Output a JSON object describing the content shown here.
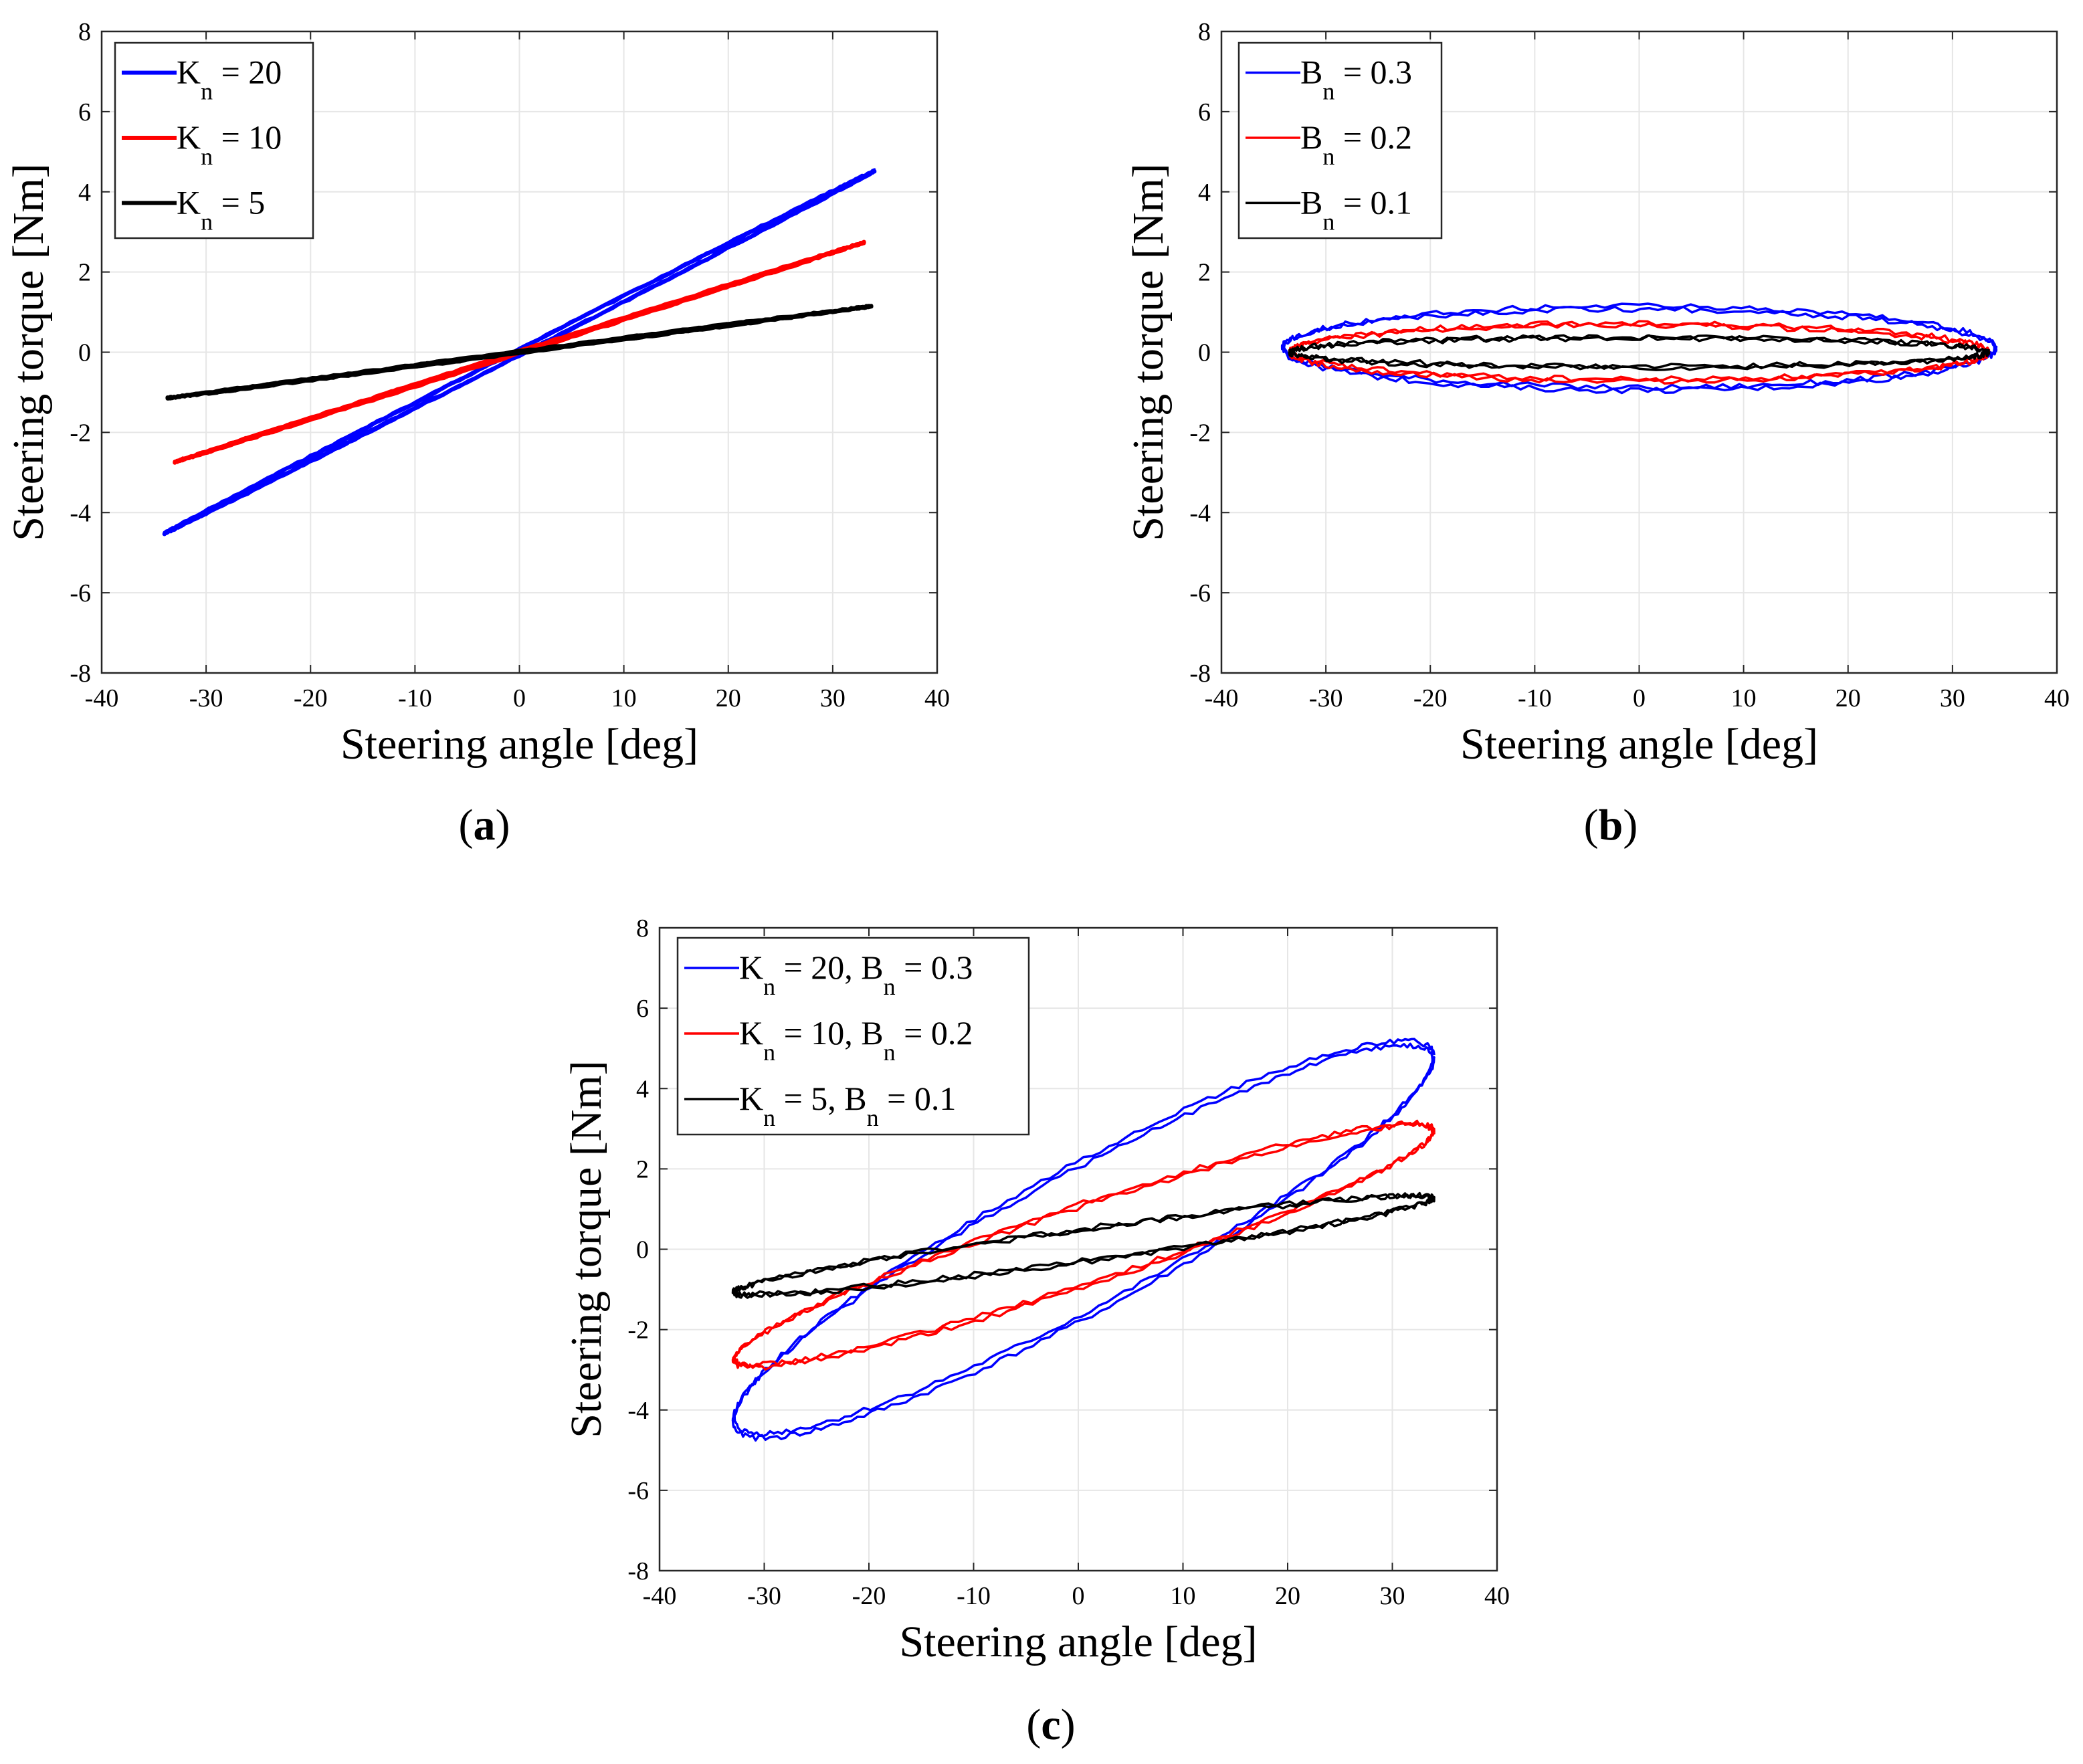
{
  "figure": {
    "panels": [
      {
        "id": "a",
        "label": "(a)",
        "label_parts": [
          "(",
          "a",
          ")"
        ],
        "xlabel": "Steering angle [deg]",
        "ylabel": "Steering torque [Nm]",
        "xlim": [
          -40,
          40
        ],
        "ylim": [
          -8,
          8
        ],
        "xticks": [
          -40,
          -30,
          -20,
          -10,
          0,
          10,
          20,
          30,
          40
        ],
        "yticks": [
          -8,
          -6,
          -4,
          -2,
          0,
          2,
          4,
          6,
          8
        ],
        "legend": [
          {
            "text": "K",
            "sub": "n",
            "rest": " = 20",
            "color": "#0000ff"
          },
          {
            "text": "K",
            "sub": "n",
            "rest": " = 10",
            "color": "#ff0000"
          },
          {
            "text": "K",
            "sub": "n",
            "rest": " = 5",
            "color": "#000000"
          }
        ]
      },
      {
        "id": "b",
        "label": "(b)",
        "label_parts": [
          "(",
          "b",
          ")"
        ],
        "xlabel": "Steering angle [deg]",
        "ylabel": "Steering torque [Nm]",
        "xlim": [
          -40,
          40
        ],
        "ylim": [
          -8,
          8
        ],
        "xticks": [
          -40,
          -30,
          -20,
          -10,
          0,
          10,
          20,
          30,
          40
        ],
        "yticks": [
          -8,
          -6,
          -4,
          -2,
          0,
          2,
          4,
          6,
          8
        ],
        "legend": [
          {
            "text": "B",
            "sub": "n",
            "rest": " = 0.3",
            "color": "#0000ff"
          },
          {
            "text": "B",
            "sub": "n",
            "rest": " = 0.2",
            "color": "#ff0000"
          },
          {
            "text": "B",
            "sub": "n",
            "rest": " = 0.1",
            "color": "#000000"
          }
        ]
      },
      {
        "id": "c",
        "label": "(c)",
        "label_parts": [
          "(",
          "c",
          ")"
        ],
        "xlabel": "Steering angle [deg]",
        "ylabel": "Steering torque [Nm]",
        "xlim": [
          -40,
          40
        ],
        "ylim": [
          -8,
          8
        ],
        "xticks": [
          -40,
          -30,
          -20,
          -10,
          0,
          10,
          20,
          30,
          40
        ],
        "yticks": [
          -8,
          -6,
          -4,
          -2,
          0,
          2,
          4,
          6,
          8
        ],
        "legend": [
          {
            "text": "K",
            "sub": "n",
            "rest": " = 20, B",
            "sub2": "n",
            "rest2": " = 0.3",
            "color": "#0000ff"
          },
          {
            "text": "K",
            "sub": "n",
            "rest": " = 10, B",
            "sub2": "n",
            "rest2": " = 0.2",
            "color": "#ff0000"
          },
          {
            "text": "K",
            "sub": "n",
            "rest": " = 5,   B",
            "sub2": "n",
            "rest2": " = 0.1",
            "color": "#000000"
          }
        ]
      }
    ]
  },
  "chart_data": [
    {
      "type": "line",
      "panel": "a",
      "title": "",
      "xlabel": "Steering angle [deg]",
      "ylabel": "Steering torque [Nm]",
      "xlim": [
        -40,
        40
      ],
      "ylim": [
        -8,
        8
      ],
      "grid": true,
      "legend_position": "top-left",
      "series": [
        {
          "name": "K_n = 20",
          "color": "#0000ff",
          "style": "loop",
          "x_range": [
            -33,
            34
          ],
          "center": [
            0,
            0
          ],
          "amplitude": 34,
          "slope": 0.133,
          "offset": 0.0,
          "half_width": 0.08
        },
        {
          "name": "K_n = 10",
          "color": "#ff0000",
          "style": "loop",
          "x_range": [
            -33,
            33
          ],
          "center": [
            0,
            0
          ],
          "amplitude": 33,
          "slope": 0.083,
          "offset": 0.0,
          "half_width": 0.03
        },
        {
          "name": "K_n = 5",
          "color": "#000000",
          "style": "loop",
          "x_range": [
            -33.5,
            34
          ],
          "center": [
            0,
            0
          ],
          "amplitude": 33.7,
          "slope": 0.034,
          "offset": 0.0,
          "half_width": 0.02
        }
      ]
    },
    {
      "type": "line",
      "panel": "b",
      "title": "",
      "xlabel": "Steering angle [deg]",
      "ylabel": "Steering torque [Nm]",
      "xlim": [
        -40,
        40
      ],
      "ylim": [
        -8,
        8
      ],
      "grid": true,
      "legend_position": "top-left",
      "series": [
        {
          "name": "B_n = 0.3",
          "color": "#0000ff",
          "style": "loop",
          "x_range": [
            -34,
            34.5
          ],
          "center": [
            0,
            0.1
          ],
          "amplitude": 34.2,
          "slope": 0.0,
          "offset": 0.1,
          "half_width": 1.05
        },
        {
          "name": "B_n = 0.2",
          "color": "#ff0000",
          "style": "loop",
          "x_range": [
            -33,
            34
          ],
          "center": [
            0,
            0.0
          ],
          "amplitude": 33.5,
          "slope": 0.0,
          "offset": 0.0,
          "half_width": 0.72
        },
        {
          "name": "B_n = 0.1",
          "color": "#000000",
          "style": "loop",
          "x_range": [
            -33,
            34
          ],
          "center": [
            0,
            0.0
          ],
          "amplitude": 33.5,
          "slope": 0.0,
          "offset": 0.0,
          "half_width": 0.38
        }
      ]
    },
    {
      "type": "line",
      "panel": "c",
      "title": "",
      "xlabel": "Steering angle [deg]",
      "ylabel": "Steering torque [Nm]",
      "xlim": [
        -40,
        40
      ],
      "ylim": [
        -8,
        8
      ],
      "grid": true,
      "legend_position": "top-left",
      "series": [
        {
          "name": "K_n = 20, B_n = 0.3",
          "color": "#0000ff",
          "style": "loop",
          "x_range": [
            -33,
            34
          ],
          "center": [
            0.5,
            0.25
          ],
          "amplitude": 33.5,
          "slope": 0.135,
          "offset": 0.25,
          "half_width": 2.0
        },
        {
          "name": "K_n = 10, B_n = 0.2",
          "color": "#ff0000",
          "style": "loop",
          "x_range": [
            -33,
            34
          ],
          "center": [
            0.5,
            0.1
          ],
          "amplitude": 33.5,
          "slope": 0.085,
          "offset": 0.1,
          "half_width": 1.05
        },
        {
          "name": "K_n = 5, B_n = 0.1",
          "color": "#000000",
          "style": "loop",
          "x_range": [
            -33,
            34
          ],
          "center": [
            0.5,
            0.1
          ],
          "amplitude": 33.5,
          "slope": 0.035,
          "offset": 0.1,
          "half_width": 0.42
        }
      ]
    }
  ]
}
